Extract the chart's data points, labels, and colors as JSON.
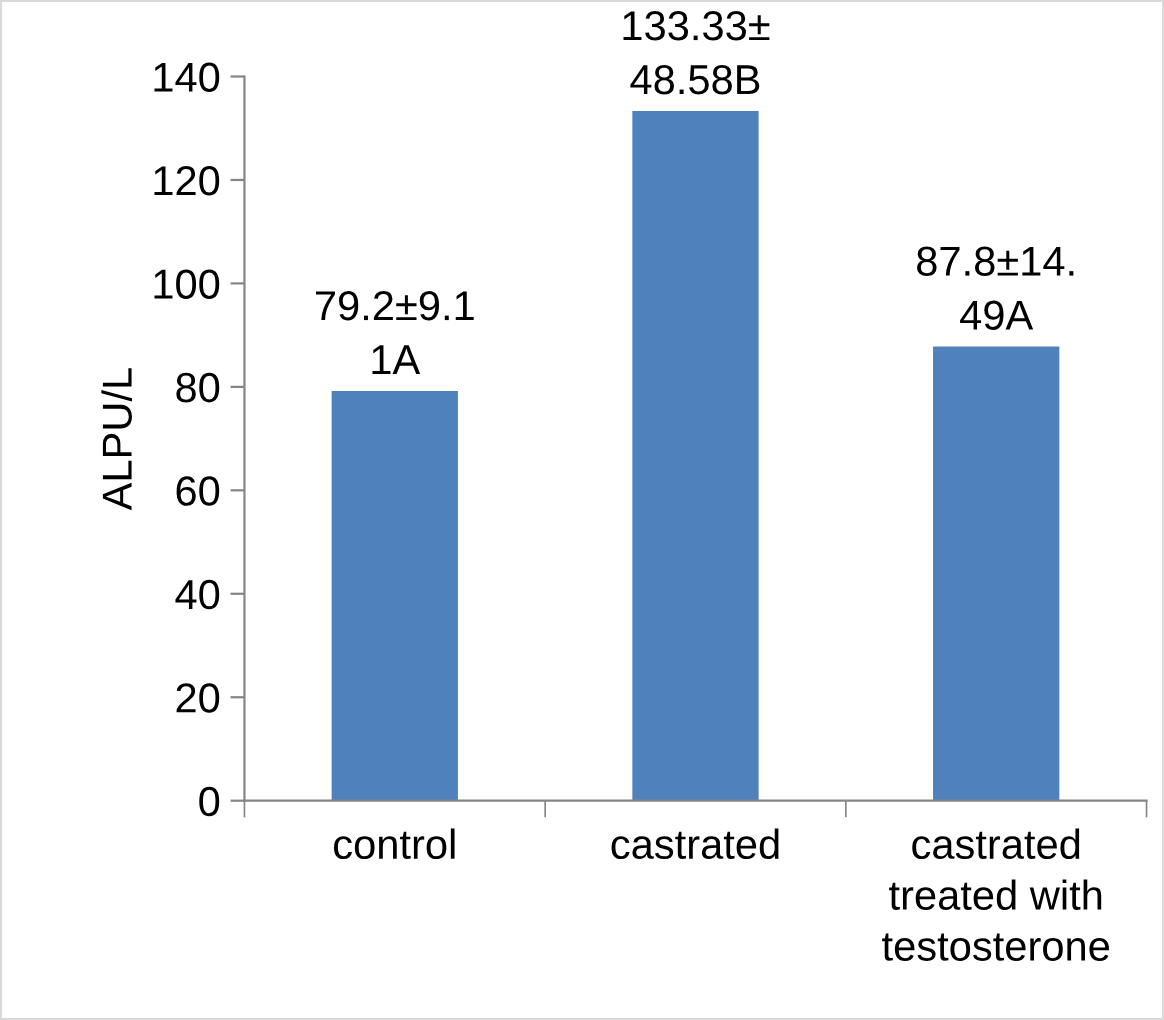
{
  "chart_data": {
    "type": "bar",
    "ylabel": "ALPU/L",
    "categories": [
      "control",
      "castrated",
      "castrated treated with testosterone"
    ],
    "values": [
      79.2,
      133.33,
      87.8
    ],
    "value_labels": [
      "79.2±9.1\n1A",
      "133.33±\n48.58B",
      "87.8±14.\n49A"
    ],
    "color": "#4f81bd",
    "ylim": [
      0,
      140
    ],
    "yticks": [
      0,
      20,
      40,
      60,
      80,
      100,
      120,
      140
    ],
    "grid": false,
    "legend": false
  }
}
